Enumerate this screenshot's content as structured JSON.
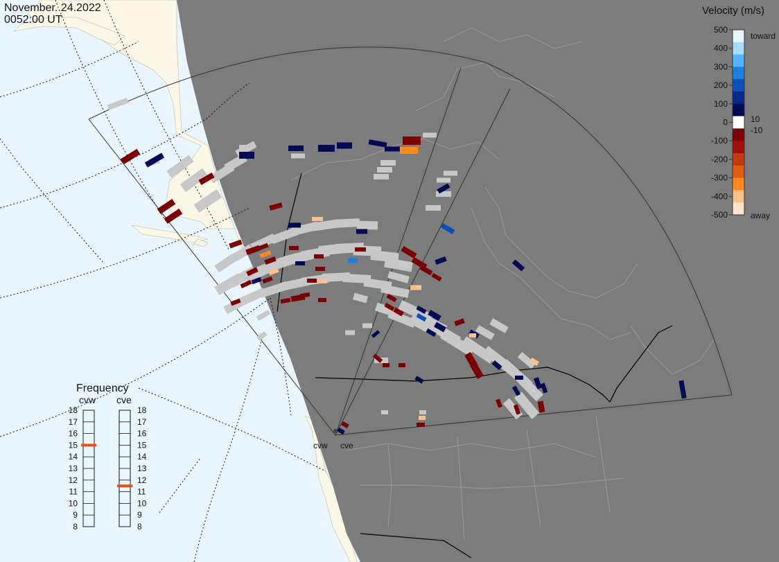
{
  "header": {
    "date": "November. 24.2022",
    "time": "0052:00 UT"
  },
  "colorbar": {
    "title": "Velocity (m/s)",
    "ticks": [
      "500",
      "400",
      "300",
      "200",
      "100",
      "0",
      "-100",
      "-200",
      "-300",
      "-400",
      "-500"
    ],
    "label_toward": "toward",
    "label_away": "away",
    "label_plus10": "10",
    "label_minus10": "-10",
    "colors": [
      "#e6f6ff",
      "#a8dcff",
      "#55b6ff",
      "#1e7fe0",
      "#0b4fb8",
      "#052a8a",
      "#000a55",
      "#ffffff",
      "#7a0000",
      "#a01008",
      "#c03a10",
      "#e05a10",
      "#ff8a1e",
      "#ffc08a",
      "#ffe4cc"
    ]
  },
  "frequency_panel": {
    "title": "Frequency",
    "radar_left": "cvw",
    "radar_right": "cve",
    "levels": [
      "18",
      "17",
      "16",
      "15",
      "14",
      "13",
      "12",
      "11",
      "10",
      "9",
      "8"
    ],
    "cvw_freq_mhz": 15,
    "cve_freq_mhz": 11,
    "marker_color": "#e8501c"
  },
  "radar_labels": {
    "left": "cvw",
    "right": "cve"
  },
  "map_colors": {
    "night": "#7c7c7c",
    "ocean_day": "#eaf6ff",
    "land_day": "#fbf8e6",
    "groundscatter": "#c8c8c8"
  }
}
